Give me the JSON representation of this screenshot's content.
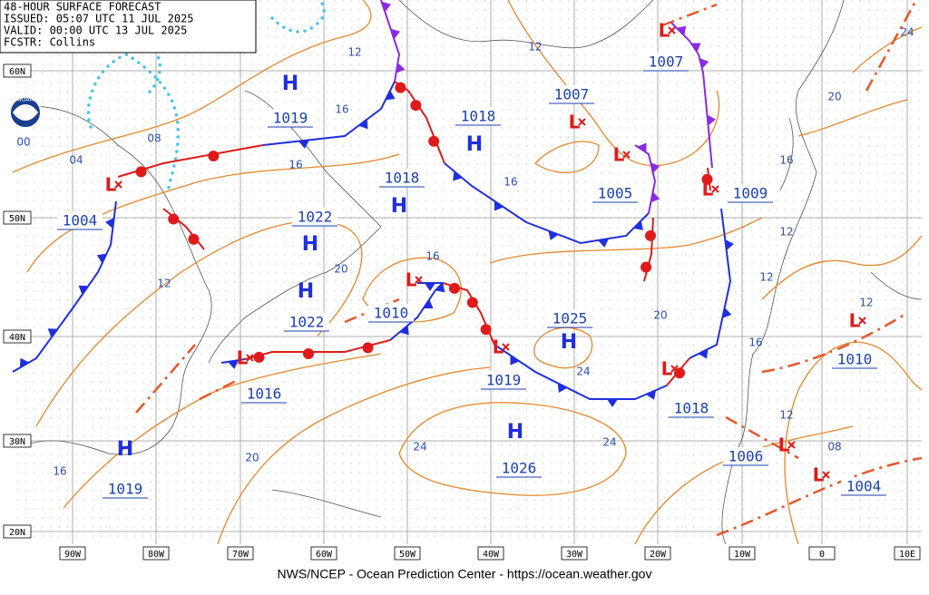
{
  "header": {
    "lines": [
      "48-HOUR SURFACE FORECAST",
      "ISSUED: 05:07 UTC 11 JUL 2025",
      "VALID: 00:00 UTC 13 JUL 2025",
      "FCSTR: Collins"
    ]
  },
  "logo": "NOAA",
  "lat_labels": [
    "60N",
    "50N",
    "40N",
    "30N",
    "20N"
  ],
  "lon_labels": [
    "90W",
    "80W",
    "70W",
    "60W",
    "50W",
    "40W",
    "30W",
    "20W",
    "10W",
    "0",
    "10E"
  ],
  "highs": [
    {
      "symbol": "H",
      "pressure": "1019"
    },
    {
      "symbol": "H",
      "pressure": "1018"
    },
    {
      "symbol": "H",
      "pressure": "1018"
    },
    {
      "symbol": "H",
      "pressure": "1022"
    },
    {
      "symbol": "H",
      "pressure": "1022"
    },
    {
      "symbol": "H",
      "pressure": "1025"
    },
    {
      "symbol": "H",
      "pressure": "1026"
    },
    {
      "symbol": "H",
      "pressure": "1019"
    }
  ],
  "lows": [
    {
      "symbol": "L",
      "pressure": "1004"
    },
    {
      "symbol": "L",
      "pressure": "1007"
    },
    {
      "symbol": "L",
      "pressure": "1007"
    },
    {
      "symbol": "L",
      "pressure": "1005"
    },
    {
      "symbol": "L",
      "pressure": "1009"
    },
    {
      "symbol": "L",
      "pressure": "1010"
    },
    {
      "symbol": "L",
      "pressure": "1016"
    },
    {
      "symbol": "L",
      "pressure": "1019"
    },
    {
      "symbol": "L",
      "pressure": "1018"
    },
    {
      "symbol": "L",
      "pressure": "1006"
    },
    {
      "symbol": "L",
      "pressure": "1004"
    },
    {
      "symbol": "L",
      "pressure": "1010"
    }
  ],
  "isobar_labels": [
    "12",
    "16",
    "16",
    "12",
    "16",
    "04",
    "08",
    "00",
    "12",
    "20",
    "16",
    "20",
    "24",
    "16",
    "12",
    "12",
    "16",
    "20",
    "24",
    "12",
    "12",
    "08",
    "24",
    "24",
    "20",
    "16"
  ],
  "footer": "NWS/NCEP - Ocean Prediction Center - https://ocean.weather.gov"
}
